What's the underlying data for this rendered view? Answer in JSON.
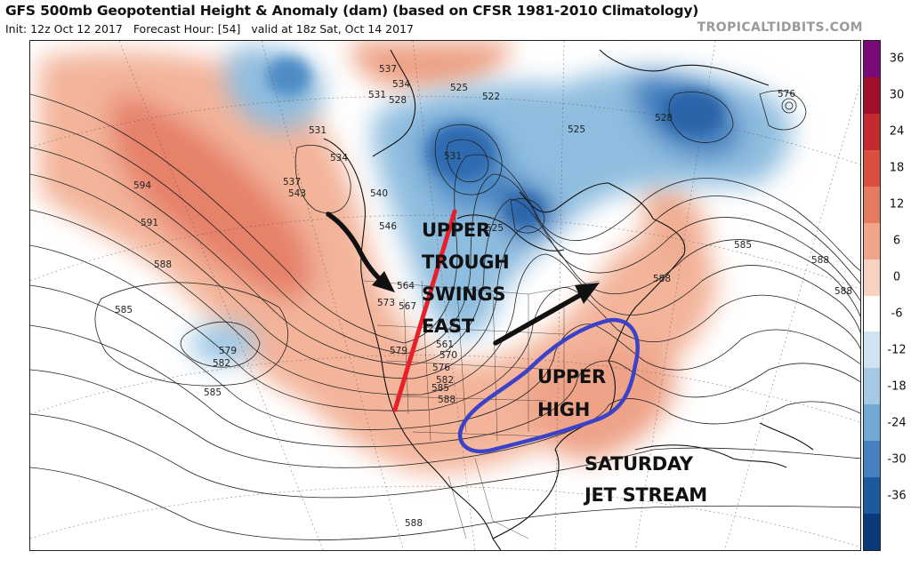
{
  "header": {
    "title": "GFS 500mb Geopotential Height & Anomaly (dam) (based on CFSR 1981-2010 Climatology)",
    "init": "Init: 12z Oct 12 2017",
    "forecast_hour": "Forecast Hour: [54]",
    "valid": "valid at 18z Sat, Oct 14 2017",
    "brand": "TROPICALTIDBITS.COM"
  },
  "contour_labels": [
    "537",
    "534",
    "531",
    "528",
    "525",
    "522",
    "525",
    "531",
    "537",
    "543",
    "534",
    "540",
    "546",
    "594",
    "591",
    "588",
    "585",
    "579",
    "582",
    "585",
    "573",
    "564",
    "567",
    "579",
    "561",
    "570",
    "576",
    "582",
    "585",
    "588",
    "531",
    "525",
    "585",
    "588",
    "588",
    "576",
    "528",
    "588",
    "588"
  ],
  "annotations": {
    "trough": [
      "UPPER",
      "TROUGH",
      "SWINGS",
      "EAST"
    ],
    "high": [
      "UPPER",
      "HIGH"
    ],
    "jet": [
      "SATURDAY",
      "JET STREAM"
    ]
  },
  "colorbar": {
    "ticks": [
      "36",
      "30",
      "24",
      "18",
      "12",
      "6",
      "0",
      "-6",
      "-12",
      "-18",
      "-24",
      "-30",
      "-36"
    ],
    "colors": [
      "#7a0a7a",
      "#a0102a",
      "#c42a30",
      "#d9503e",
      "#e67a5e",
      "#f0a58a",
      "#f8d2c0",
      "#ffffff",
      "#cfe3f0",
      "#a4c9e4",
      "#72a9d4",
      "#4682bf",
      "#1c5aa0",
      "#083a7a"
    ]
  }
}
